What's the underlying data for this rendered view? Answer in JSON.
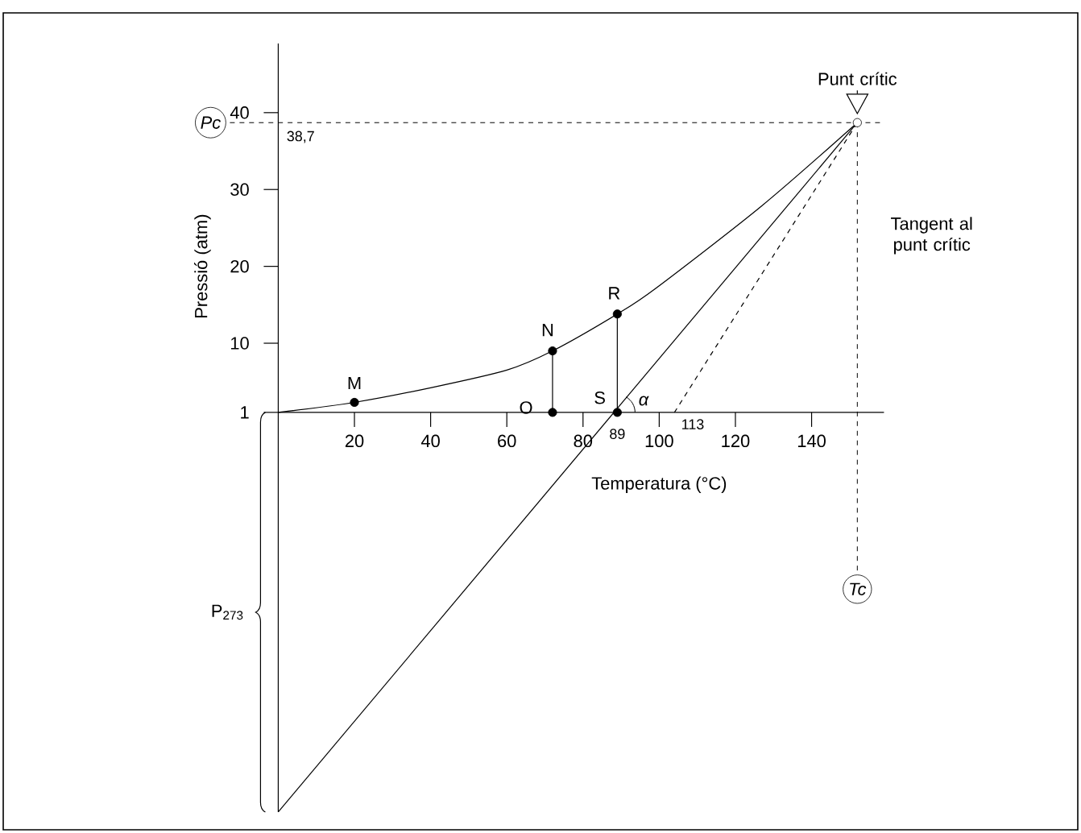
{
  "chart_data": {
    "type": "line",
    "xlabel": "Temperatura (°C)",
    "ylabel": "Pressió (atm)",
    "xlim": [
      0,
      159
    ],
    "ylim": [
      -51,
      49
    ],
    "xticks": [
      20,
      40,
      60,
      80,
      100,
      120,
      140
    ],
    "yticks": [
      1,
      10,
      20,
      30,
      40
    ],
    "series": [
      {
        "x": [
          0,
          20,
          40,
          60,
          72,
          89,
          99,
          127,
          152
        ],
        "values": [
          1,
          2.3,
          4.2,
          6.5,
          9.0,
          13.8,
          17.1,
          27.9,
          38.7
        ],
        "color": "#000000"
      },
      {
        "x": [
          0,
          152
        ],
        "values": [
          -51,
          38.7
        ],
        "color": "#000000"
      },
      {
        "x": [
          104,
          152
        ],
        "values": [
          1,
          38.7
        ],
        "color": "#000000",
        "line_style": "dashed"
      },
      {
        "x": [
          72,
          72
        ],
        "values": [
          1,
          9.0
        ],
        "color": "#000000"
      },
      {
        "x": [
          89,
          89
        ],
        "values": [
          1,
          13.8
        ],
        "color": "#000000"
      },
      {
        "type": "scatter",
        "x": [
          20,
          72,
          72,
          89,
          89
        ],
        "values": [
          2.3,
          9.0,
          1,
          13.8,
          1
        ],
        "color": "#000000",
        "marker": "circle"
      },
      {
        "type": "scatter",
        "x": [
          152
        ],
        "values": [
          38.7
        ],
        "color": "#ffffff",
        "marker": "circle"
      }
    ],
    "ref_lines": [
      {
        "axis": "y",
        "value": 38.7,
        "label": "Pc",
        "line_style": "dashed"
      },
      {
        "axis": "x",
        "value": 152,
        "label": "Tc",
        "line_style": "dashed"
      }
    ],
    "annotations": [
      {
        "text": "M",
        "x": 20,
        "y": 2.3
      },
      {
        "text": "N",
        "x": 72,
        "y": 9.0
      },
      {
        "text": "O",
        "x": 72,
        "y": 1
      },
      {
        "text": "R",
        "x": 89,
        "y": 13.8
      },
      {
        "text": "S",
        "x": 89,
        "y": 1
      },
      {
        "text": "89",
        "x": 89,
        "y": 1
      },
      {
        "text": "α",
        "x": 89,
        "y": 1
      },
      {
        "text": "113",
        "x": 104,
        "y": 1
      },
      {
        "text": "38,7",
        "x": 0,
        "y": 38.7
      },
      {
        "text": "Punt crític",
        "x": 152,
        "y": 38.7
      },
      {
        "text": "Tangent al punt crític",
        "x": 152,
        "y": 24
      },
      "P$_{273}$"
    ]
  }
}
